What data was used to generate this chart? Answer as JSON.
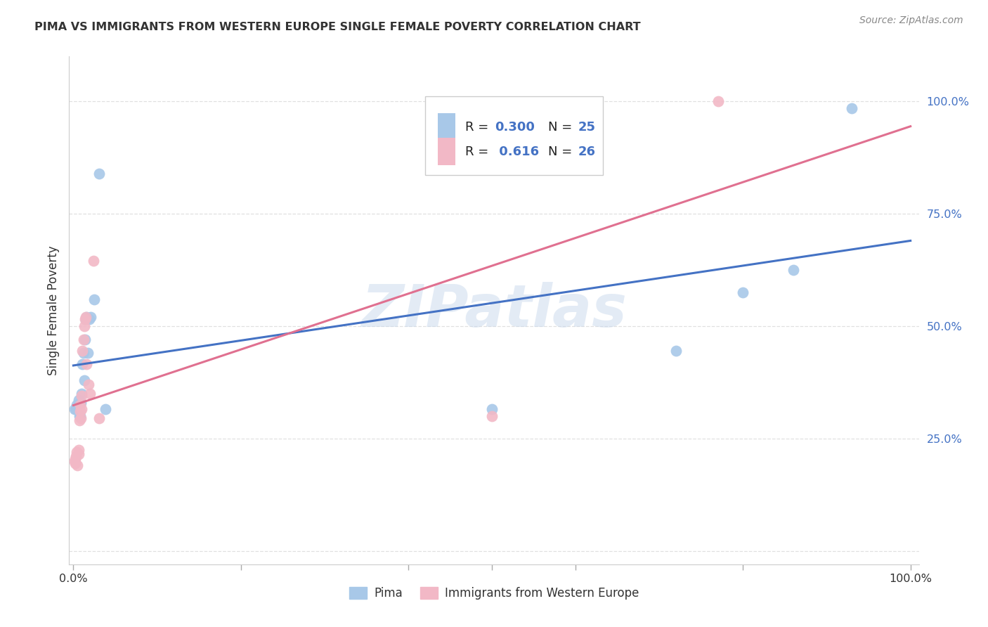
{
  "title": "PIMA VS IMMIGRANTS FROM WESTERN EUROPE SINGLE FEMALE POVERTY CORRELATION CHART",
  "source": "Source: ZipAtlas.com",
  "ylabel": "Single Female Poverty",
  "pima_color": "#a8c8e8",
  "pima_edge_color": "#a8c8e8",
  "pima_line_color": "#4472c4",
  "immigrants_color": "#f2b8c6",
  "immigrants_edge_color": "#f2b8c6",
  "immigrants_line_color": "#e07090",
  "watermark": "ZIPatlas",
  "background_color": "#ffffff",
  "grid_color": "#e0e0e0",
  "pima_x": [
    0.001,
    0.003,
    0.004,
    0.006,
    0.007,
    0.008,
    0.009,
    0.01,
    0.011,
    0.012,
    0.013,
    0.014,
    0.015,
    0.016,
    0.017,
    0.019,
    0.021,
    0.025,
    0.031,
    0.038,
    0.5,
    0.72,
    0.8,
    0.86,
    0.93
  ],
  "pima_y": [
    0.315,
    0.315,
    0.325,
    0.335,
    0.3,
    0.3,
    0.33,
    0.35,
    0.415,
    0.44,
    0.38,
    0.47,
    0.515,
    0.52,
    0.44,
    0.515,
    0.52,
    0.56,
    0.84,
    0.315,
    0.315,
    0.445,
    0.575,
    0.625,
    0.985
  ],
  "immigrants_x": [
    0.001,
    0.002,
    0.002,
    0.003,
    0.004,
    0.005,
    0.006,
    0.006,
    0.007,
    0.008,
    0.008,
    0.009,
    0.01,
    0.01,
    0.011,
    0.012,
    0.013,
    0.014,
    0.015,
    0.016,
    0.018,
    0.02,
    0.024,
    0.031,
    0.5,
    0.77
  ],
  "immigrants_y": [
    0.2,
    0.195,
    0.205,
    0.21,
    0.22,
    0.19,
    0.215,
    0.225,
    0.29,
    0.31,
    0.325,
    0.295,
    0.315,
    0.345,
    0.445,
    0.47,
    0.5,
    0.515,
    0.52,
    0.415,
    0.37,
    0.35,
    0.645,
    0.295,
    0.3,
    1.0
  ],
  "ytick_positions": [
    0.0,
    0.25,
    0.5,
    0.75,
    1.0
  ],
  "ytick_labels": [
    "",
    "25.0%",
    "50.0%",
    "75.0%",
    "100.0%"
  ],
  "xlim": [
    -0.005,
    1.01
  ],
  "ylim": [
    -0.03,
    1.1
  ],
  "legend_r1": "0.300",
  "legend_n1": "25",
  "legend_r2": "0.616",
  "legend_n2": "26"
}
